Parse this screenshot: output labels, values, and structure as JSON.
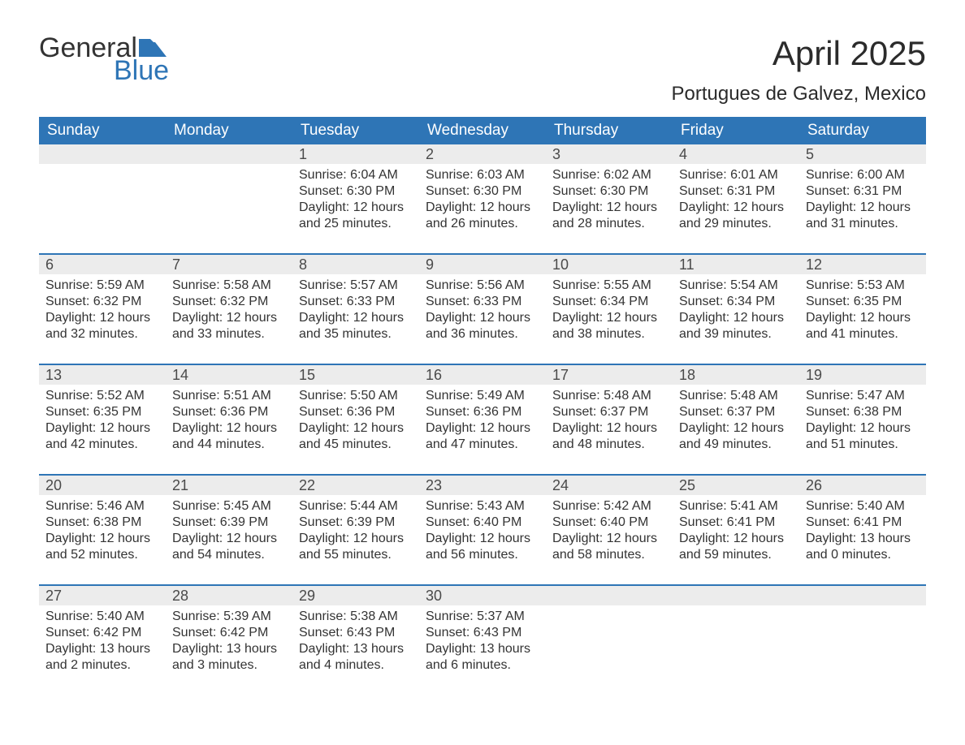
{
  "logo": {
    "word1": "General",
    "word2": "Blue",
    "icon_color": "#2e75b6"
  },
  "title": "April 2025",
  "location": "Portugues de Galvez, Mexico",
  "colors": {
    "header_bg": "#2e75b6",
    "header_text": "#ffffff",
    "daynum_bg": "#ececec",
    "week_border": "#2e75b6",
    "body_text": "#333333",
    "page_bg": "#ffffff"
  },
  "weekdays": [
    "Sunday",
    "Monday",
    "Tuesday",
    "Wednesday",
    "Thursday",
    "Friday",
    "Saturday"
  ],
  "weeks": [
    [
      {
        "day": "",
        "sunrise": "",
        "sunset": "",
        "daylight": ""
      },
      {
        "day": "",
        "sunrise": "",
        "sunset": "",
        "daylight": ""
      },
      {
        "day": "1",
        "sunrise": "Sunrise: 6:04 AM",
        "sunset": "Sunset: 6:30 PM",
        "daylight": "Daylight: 12 hours and 25 minutes."
      },
      {
        "day": "2",
        "sunrise": "Sunrise: 6:03 AM",
        "sunset": "Sunset: 6:30 PM",
        "daylight": "Daylight: 12 hours and 26 minutes."
      },
      {
        "day": "3",
        "sunrise": "Sunrise: 6:02 AM",
        "sunset": "Sunset: 6:30 PM",
        "daylight": "Daylight: 12 hours and 28 minutes."
      },
      {
        "day": "4",
        "sunrise": "Sunrise: 6:01 AM",
        "sunset": "Sunset: 6:31 PM",
        "daylight": "Daylight: 12 hours and 29 minutes."
      },
      {
        "day": "5",
        "sunrise": "Sunrise: 6:00 AM",
        "sunset": "Sunset: 6:31 PM",
        "daylight": "Daylight: 12 hours and 31 minutes."
      }
    ],
    [
      {
        "day": "6",
        "sunrise": "Sunrise: 5:59 AM",
        "sunset": "Sunset: 6:32 PM",
        "daylight": "Daylight: 12 hours and 32 minutes."
      },
      {
        "day": "7",
        "sunrise": "Sunrise: 5:58 AM",
        "sunset": "Sunset: 6:32 PM",
        "daylight": "Daylight: 12 hours and 33 minutes."
      },
      {
        "day": "8",
        "sunrise": "Sunrise: 5:57 AM",
        "sunset": "Sunset: 6:33 PM",
        "daylight": "Daylight: 12 hours and 35 minutes."
      },
      {
        "day": "9",
        "sunrise": "Sunrise: 5:56 AM",
        "sunset": "Sunset: 6:33 PM",
        "daylight": "Daylight: 12 hours and 36 minutes."
      },
      {
        "day": "10",
        "sunrise": "Sunrise: 5:55 AM",
        "sunset": "Sunset: 6:34 PM",
        "daylight": "Daylight: 12 hours and 38 minutes."
      },
      {
        "day": "11",
        "sunrise": "Sunrise: 5:54 AM",
        "sunset": "Sunset: 6:34 PM",
        "daylight": "Daylight: 12 hours and 39 minutes."
      },
      {
        "day": "12",
        "sunrise": "Sunrise: 5:53 AM",
        "sunset": "Sunset: 6:35 PM",
        "daylight": "Daylight: 12 hours and 41 minutes."
      }
    ],
    [
      {
        "day": "13",
        "sunrise": "Sunrise: 5:52 AM",
        "sunset": "Sunset: 6:35 PM",
        "daylight": "Daylight: 12 hours and 42 minutes."
      },
      {
        "day": "14",
        "sunrise": "Sunrise: 5:51 AM",
        "sunset": "Sunset: 6:36 PM",
        "daylight": "Daylight: 12 hours and 44 minutes."
      },
      {
        "day": "15",
        "sunrise": "Sunrise: 5:50 AM",
        "sunset": "Sunset: 6:36 PM",
        "daylight": "Daylight: 12 hours and 45 minutes."
      },
      {
        "day": "16",
        "sunrise": "Sunrise: 5:49 AM",
        "sunset": "Sunset: 6:36 PM",
        "daylight": "Daylight: 12 hours and 47 minutes."
      },
      {
        "day": "17",
        "sunrise": "Sunrise: 5:48 AM",
        "sunset": "Sunset: 6:37 PM",
        "daylight": "Daylight: 12 hours and 48 minutes."
      },
      {
        "day": "18",
        "sunrise": "Sunrise: 5:48 AM",
        "sunset": "Sunset: 6:37 PM",
        "daylight": "Daylight: 12 hours and 49 minutes."
      },
      {
        "day": "19",
        "sunrise": "Sunrise: 5:47 AM",
        "sunset": "Sunset: 6:38 PM",
        "daylight": "Daylight: 12 hours and 51 minutes."
      }
    ],
    [
      {
        "day": "20",
        "sunrise": "Sunrise: 5:46 AM",
        "sunset": "Sunset: 6:38 PM",
        "daylight": "Daylight: 12 hours and 52 minutes."
      },
      {
        "day": "21",
        "sunrise": "Sunrise: 5:45 AM",
        "sunset": "Sunset: 6:39 PM",
        "daylight": "Daylight: 12 hours and 54 minutes."
      },
      {
        "day": "22",
        "sunrise": "Sunrise: 5:44 AM",
        "sunset": "Sunset: 6:39 PM",
        "daylight": "Daylight: 12 hours and 55 minutes."
      },
      {
        "day": "23",
        "sunrise": "Sunrise: 5:43 AM",
        "sunset": "Sunset: 6:40 PM",
        "daylight": "Daylight: 12 hours and 56 minutes."
      },
      {
        "day": "24",
        "sunrise": "Sunrise: 5:42 AM",
        "sunset": "Sunset: 6:40 PM",
        "daylight": "Daylight: 12 hours and 58 minutes."
      },
      {
        "day": "25",
        "sunrise": "Sunrise: 5:41 AM",
        "sunset": "Sunset: 6:41 PM",
        "daylight": "Daylight: 12 hours and 59 minutes."
      },
      {
        "day": "26",
        "sunrise": "Sunrise: 5:40 AM",
        "sunset": "Sunset: 6:41 PM",
        "daylight": "Daylight: 13 hours and 0 minutes."
      }
    ],
    [
      {
        "day": "27",
        "sunrise": "Sunrise: 5:40 AM",
        "sunset": "Sunset: 6:42 PM",
        "daylight": "Daylight: 13 hours and 2 minutes."
      },
      {
        "day": "28",
        "sunrise": "Sunrise: 5:39 AM",
        "sunset": "Sunset: 6:42 PM",
        "daylight": "Daylight: 13 hours and 3 minutes."
      },
      {
        "day": "29",
        "sunrise": "Sunrise: 5:38 AM",
        "sunset": "Sunset: 6:43 PM",
        "daylight": "Daylight: 13 hours and 4 minutes."
      },
      {
        "day": "30",
        "sunrise": "Sunrise: 5:37 AM",
        "sunset": "Sunset: 6:43 PM",
        "daylight": "Daylight: 13 hours and 6 minutes."
      },
      {
        "day": "",
        "sunrise": "",
        "sunset": "",
        "daylight": ""
      },
      {
        "day": "",
        "sunrise": "",
        "sunset": "",
        "daylight": ""
      },
      {
        "day": "",
        "sunrise": "",
        "sunset": "",
        "daylight": ""
      }
    ]
  ]
}
